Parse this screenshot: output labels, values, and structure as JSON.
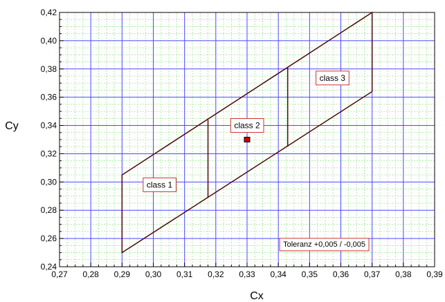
{
  "chart_data": {
    "type": "scatter",
    "title": "",
    "xlabel": "Cx",
    "ylabel": "Cy",
    "xlim": [
      0.27,
      0.39
    ],
    "ylim": [
      0.24,
      0.42
    ],
    "xticks": [
      "0,27",
      "0,28",
      "0,29",
      "0,30",
      "0,31",
      "0,32",
      "0,33",
      "0,34",
      "0,35",
      "0,36",
      "0,37",
      "0,38",
      "0,39"
    ],
    "yticks": [
      "0,24",
      "0,26",
      "0,28",
      "0,30",
      "0,32",
      "0,34",
      "0,36",
      "0,38",
      "0,40",
      "0,42"
    ],
    "grid": true,
    "outline": [
      [
        0.29,
        0.25
      ],
      [
        0.37,
        0.364
      ],
      [
        0.37,
        0.42
      ],
      [
        0.29,
        0.305
      ]
    ],
    "dividers": [
      {
        "x": 0.3175,
        "y_bottom": 0.289,
        "y_top": 0.344
      },
      {
        "x": 0.343,
        "y_bottom": 0.325,
        "y_top": 0.381
      }
    ],
    "point": {
      "x": 0.33,
      "y": 0.33
    },
    "annotations": [
      {
        "text": "class 1",
        "x": 0.302,
        "y": 0.298
      },
      {
        "text": "class 2",
        "x": 0.33,
        "y": 0.34
      },
      {
        "text": "class 3",
        "x": 0.3573,
        "y": 0.3736
      },
      {
        "text": "Toleranz +0,005 / -0,005",
        "x": 0.3547,
        "y": 0.2562
      }
    ],
    "colors": {
      "outline": "#4a0a0a",
      "major_grid": "#4848ff",
      "minor_grid": "#9be88e",
      "annotation_border": "#d03030",
      "point_fill": "#cc0000"
    }
  }
}
